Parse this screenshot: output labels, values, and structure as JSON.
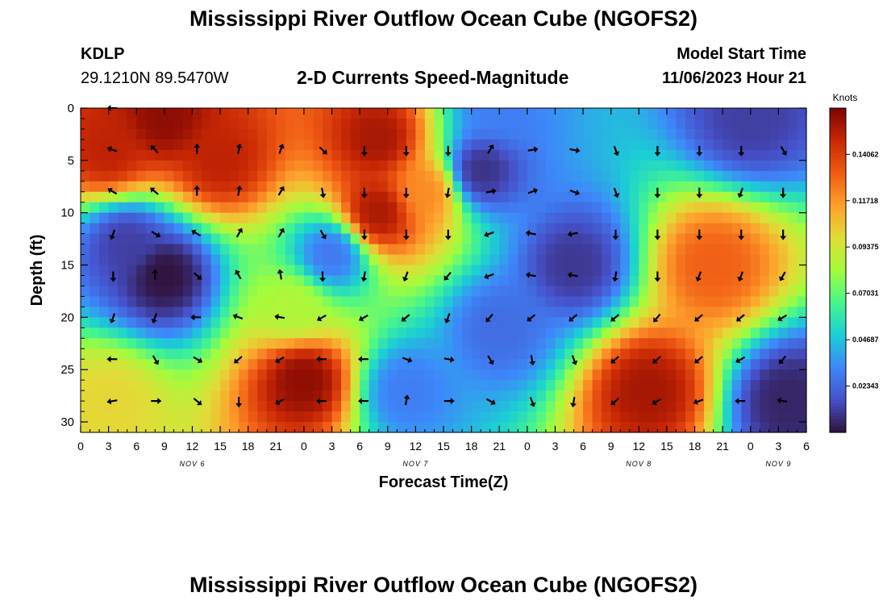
{
  "header": {
    "title": "Mississippi River Outflow Ocean Cube (NGOFS2)",
    "station_id": "KDLP",
    "coordinates": "29.1210N  89.5470W",
    "subtitle": "2-D Currents Speed-Magnitude",
    "model_start_label": "Model Start Time",
    "model_start_value": "11/06/2023 Hour 21"
  },
  "footer": {
    "title": "Mississippi River Outflow Ocean Cube (NGOFS2)"
  },
  "chart_data": {
    "type": "heatmap",
    "title": "2-D Currents Speed-Magnitude",
    "xlabel": "Forecast Time(Z)",
    "ylabel": "Depth (ft)",
    "xlim": [
      0,
      78
    ],
    "ylim": [
      0,
      31
    ],
    "y_inverted": true,
    "x_ticks": [
      0,
      3,
      6,
      9,
      12,
      15,
      18,
      21,
      24,
      27,
      30,
      33,
      36,
      39,
      42,
      45,
      48,
      51,
      54,
      57,
      60,
      63,
      66,
      69,
      72,
      75,
      78
    ],
    "x_tick_labels": [
      "0",
      "3",
      "6",
      "9",
      "12",
      "15",
      "18",
      "21",
      "0",
      "3",
      "6",
      "9",
      "12",
      "15",
      "18",
      "21",
      "0",
      "3",
      "6",
      "9",
      "12",
      "15",
      "18",
      "21",
      "0",
      "3",
      "6"
    ],
    "y_ticks": [
      0,
      5,
      10,
      15,
      20,
      25,
      30
    ],
    "y_tick_labels": [
      "0",
      "5",
      "10",
      "15",
      "20",
      "25",
      "30"
    ],
    "day_labels": [
      {
        "hour": 12,
        "label": "NOV 6"
      },
      {
        "hour": 36,
        "label": "NOV 7"
      },
      {
        "hour": 60,
        "label": "NOV 8"
      },
      {
        "hour": 75,
        "label": "NOV 9"
      }
    ],
    "colorbar": {
      "label": "Knots",
      "min": 0.0,
      "max": 0.164,
      "ticks": [
        0.02343,
        0.04687,
        0.07031,
        0.09375,
        0.11718,
        0.14062
      ],
      "tick_labels": [
        "0.02343",
        "0.04687",
        "0.07031",
        "0.09375",
        "0.11718",
        "0.14062"
      ]
    },
    "speed_features": [
      {
        "hour": 9,
        "depth": 1,
        "speed": 0.16
      },
      {
        "hour": 3,
        "depth": 4,
        "speed": 0.15
      },
      {
        "hour": 15,
        "depth": 5,
        "speed": 0.15
      },
      {
        "hour": 9,
        "depth": 16,
        "speed": 0.0
      },
      {
        "hour": 5,
        "depth": 13,
        "speed": 0.012
      },
      {
        "hour": 27,
        "depth": 14,
        "speed": 0.028
      },
      {
        "hour": 32,
        "depth": 3,
        "speed": 0.155
      },
      {
        "hour": 32,
        "depth": 10,
        "speed": 0.155
      },
      {
        "hour": 37,
        "depth": 8,
        "speed": 0.12
      },
      {
        "hour": 43,
        "depth": 6,
        "speed": 0.008
      },
      {
        "hour": 45,
        "depth": 0,
        "speed": 0.03
      },
      {
        "hour": 53,
        "depth": 15,
        "speed": 0.01
      },
      {
        "hour": 72,
        "depth": 1,
        "speed": 0.012
      },
      {
        "hour": 24,
        "depth": 26,
        "speed": 0.16
      },
      {
        "hour": 3,
        "depth": 28,
        "speed": 0.1
      },
      {
        "hour": 61,
        "depth": 27,
        "speed": 0.155
      },
      {
        "hour": 68,
        "depth": 15,
        "speed": 0.13
      },
      {
        "hour": 76,
        "depth": 28,
        "speed": 0.005
      },
      {
        "hour": 35,
        "depth": 27,
        "speed": 0.03
      },
      {
        "hour": 45,
        "depth": 21,
        "speed": 0.025
      },
      {
        "hour": 23,
        "depth": 19,
        "speed": 0.085
      }
    ],
    "current_vectors": [
      {
        "hour": 3.5,
        "depth": 0,
        "direction": 270
      },
      {
        "hour": 3.5,
        "depth": 4,
        "direction": 290
      },
      {
        "hour": 8,
        "depth": 4,
        "direction": 315
      },
      {
        "hour": 12.5,
        "depth": 4,
        "direction": 0
      },
      {
        "hour": 17,
        "depth": 4,
        "direction": 10
      },
      {
        "hour": 21.5,
        "depth": 4,
        "direction": 20
      },
      {
        "hour": 26,
        "depth": 4,
        "direction": 135
      },
      {
        "hour": 30.5,
        "depth": 4,
        "direction": 180
      },
      {
        "hour": 35,
        "depth": 4,
        "direction": 180
      },
      {
        "hour": 39.5,
        "depth": 4,
        "direction": 180
      },
      {
        "hour": 44,
        "depth": 4,
        "direction": 30
      },
      {
        "hour": 48.5,
        "depth": 4,
        "direction": 80
      },
      {
        "hour": 53,
        "depth": 4,
        "direction": 100
      },
      {
        "hour": 57.5,
        "depth": 4,
        "direction": 160
      },
      {
        "hour": 62,
        "depth": 4,
        "direction": 180
      },
      {
        "hour": 66.5,
        "depth": 4,
        "direction": 180
      },
      {
        "hour": 71,
        "depth": 4,
        "direction": 180
      },
      {
        "hour": 75.5,
        "depth": 4,
        "direction": 150
      },
      {
        "hour": 3.5,
        "depth": 8,
        "direction": 300
      },
      {
        "hour": 8,
        "depth": 8,
        "direction": 310
      },
      {
        "hour": 12.5,
        "depth": 8,
        "direction": 0
      },
      {
        "hour": 17,
        "depth": 8,
        "direction": 10
      },
      {
        "hour": 21.5,
        "depth": 8,
        "direction": 30
      },
      {
        "hour": 26,
        "depth": 8,
        "direction": 170
      },
      {
        "hour": 30.5,
        "depth": 8,
        "direction": 180
      },
      {
        "hour": 35,
        "depth": 8,
        "direction": 180
      },
      {
        "hour": 39.5,
        "depth": 8,
        "direction": 190
      },
      {
        "hour": 44,
        "depth": 8,
        "direction": 80
      },
      {
        "hour": 48.5,
        "depth": 8,
        "direction": 70
      },
      {
        "hour": 53,
        "depth": 8,
        "direction": 110
      },
      {
        "hour": 57.5,
        "depth": 8,
        "direction": 160
      },
      {
        "hour": 62,
        "depth": 8,
        "direction": 180
      },
      {
        "hour": 66.5,
        "depth": 8,
        "direction": 180
      },
      {
        "hour": 71,
        "depth": 8,
        "direction": 200
      },
      {
        "hour": 75.5,
        "depth": 8,
        "direction": 180
      },
      {
        "hour": 3.5,
        "depth": 12,
        "direction": 200
      },
      {
        "hour": 8,
        "depth": 12,
        "direction": 120
      },
      {
        "hour": 12.5,
        "depth": 12,
        "direction": 300
      },
      {
        "hour": 17,
        "depth": 12,
        "direction": 30
      },
      {
        "hour": 21.5,
        "depth": 12,
        "direction": 30
      },
      {
        "hour": 26,
        "depth": 12,
        "direction": 150
      },
      {
        "hour": 30.5,
        "depth": 12,
        "direction": 180
      },
      {
        "hour": 35,
        "depth": 12,
        "direction": 180
      },
      {
        "hour": 39.5,
        "depth": 12,
        "direction": 180
      },
      {
        "hour": 44,
        "depth": 12,
        "direction": 250
      },
      {
        "hour": 48.5,
        "depth": 12,
        "direction": 280
      },
      {
        "hour": 53,
        "depth": 12,
        "direction": 260
      },
      {
        "hour": 57.5,
        "depth": 12,
        "direction": 180
      },
      {
        "hour": 62,
        "depth": 12,
        "direction": 180
      },
      {
        "hour": 66.5,
        "depth": 12,
        "direction": 180
      },
      {
        "hour": 71,
        "depth": 12,
        "direction": 180
      },
      {
        "hour": 75.5,
        "depth": 12,
        "direction": 180
      },
      {
        "hour": 3.5,
        "depth": 16,
        "direction": 180
      },
      {
        "hour": 8,
        "depth": 16,
        "direction": 0
      },
      {
        "hour": 12.5,
        "depth": 16,
        "direction": 130
      },
      {
        "hour": 17,
        "depth": 16,
        "direction": 330
      },
      {
        "hour": 21.5,
        "depth": 16,
        "direction": 350
      },
      {
        "hour": 26,
        "depth": 16,
        "direction": 180
      },
      {
        "hour": 30.5,
        "depth": 16,
        "direction": 190
      },
      {
        "hour": 35,
        "depth": 16,
        "direction": 200
      },
      {
        "hour": 39.5,
        "depth": 16,
        "direction": 220
      },
      {
        "hour": 44,
        "depth": 16,
        "direction": 250
      },
      {
        "hour": 48.5,
        "depth": 16,
        "direction": 280
      },
      {
        "hour": 53,
        "depth": 16,
        "direction": 280
      },
      {
        "hour": 57.5,
        "depth": 16,
        "direction": 190
      },
      {
        "hour": 62,
        "depth": 16,
        "direction": 180
      },
      {
        "hour": 66.5,
        "depth": 16,
        "direction": 200
      },
      {
        "hour": 71,
        "depth": 16,
        "direction": 200
      },
      {
        "hour": 75.5,
        "depth": 16,
        "direction": 210
      },
      {
        "hour": 3.5,
        "depth": 20,
        "direction": 200
      },
      {
        "hour": 8,
        "depth": 20,
        "direction": 200
      },
      {
        "hour": 12.5,
        "depth": 20,
        "direction": 270
      },
      {
        "hour": 17,
        "depth": 20,
        "direction": 290
      },
      {
        "hour": 21.5,
        "depth": 20,
        "direction": 280
      },
      {
        "hour": 26,
        "depth": 20,
        "direction": 240
      },
      {
        "hour": 30.5,
        "depth": 20,
        "direction": 240
      },
      {
        "hour": 35,
        "depth": 20,
        "direction": 230
      },
      {
        "hour": 39.5,
        "depth": 20,
        "direction": 200
      },
      {
        "hour": 44,
        "depth": 20,
        "direction": 220
      },
      {
        "hour": 48.5,
        "depth": 20,
        "direction": 230
      },
      {
        "hour": 53,
        "depth": 20,
        "direction": 230
      },
      {
        "hour": 57.5,
        "depth": 20,
        "direction": 230
      },
      {
        "hour": 62,
        "depth": 20,
        "direction": 220
      },
      {
        "hour": 66.5,
        "depth": 20,
        "direction": 230
      },
      {
        "hour": 71,
        "depth": 20,
        "direction": 230
      },
      {
        "hour": 75.5,
        "depth": 20,
        "direction": 240
      },
      {
        "hour": 3.5,
        "depth": 24,
        "direction": 270
      },
      {
        "hour": 8,
        "depth": 24,
        "direction": 150
      },
      {
        "hour": 12.5,
        "depth": 24,
        "direction": 120
      },
      {
        "hour": 17,
        "depth": 24,
        "direction": 230
      },
      {
        "hour": 21.5,
        "depth": 24,
        "direction": 240
      },
      {
        "hour": 26,
        "depth": 24,
        "direction": 270
      },
      {
        "hour": 30.5,
        "depth": 24,
        "direction": 270
      },
      {
        "hour": 35,
        "depth": 24,
        "direction": 110
      },
      {
        "hour": 39.5,
        "depth": 24,
        "direction": 100
      },
      {
        "hour": 44,
        "depth": 24,
        "direction": 150
      },
      {
        "hour": 48.5,
        "depth": 24,
        "direction": 170
      },
      {
        "hour": 53,
        "depth": 24,
        "direction": 160
      },
      {
        "hour": 57.5,
        "depth": 24,
        "direction": 230
      },
      {
        "hour": 62,
        "depth": 24,
        "direction": 230
      },
      {
        "hour": 66.5,
        "depth": 24,
        "direction": 230
      },
      {
        "hour": 71,
        "depth": 24,
        "direction": 240
      },
      {
        "hour": 75.5,
        "depth": 24,
        "direction": 220
      },
      {
        "hour": 3.5,
        "depth": 28,
        "direction": 260
      },
      {
        "hour": 8,
        "depth": 28,
        "direction": 90
      },
      {
        "hour": 12.5,
        "depth": 28,
        "direction": 130
      },
      {
        "hour": 17,
        "depth": 28,
        "direction": 180
      },
      {
        "hour": 21.5,
        "depth": 28,
        "direction": 240
      },
      {
        "hour": 26,
        "depth": 28,
        "direction": 270
      },
      {
        "hour": 30.5,
        "depth": 28,
        "direction": 270
      },
      {
        "hour": 35,
        "depth": 28,
        "direction": 10
      },
      {
        "hour": 39.5,
        "depth": 28,
        "direction": 90
      },
      {
        "hour": 44,
        "depth": 28,
        "direction": 120
      },
      {
        "hour": 48.5,
        "depth": 28,
        "direction": 160
      },
      {
        "hour": 53,
        "depth": 28,
        "direction": 190
      },
      {
        "hour": 57.5,
        "depth": 28,
        "direction": 230
      },
      {
        "hour": 62,
        "depth": 28,
        "direction": 240
      },
      {
        "hour": 66.5,
        "depth": 28,
        "direction": 250
      },
      {
        "hour": 71,
        "depth": 28,
        "direction": 270
      },
      {
        "hour": 75.5,
        "depth": 28,
        "direction": 280
      }
    ]
  }
}
